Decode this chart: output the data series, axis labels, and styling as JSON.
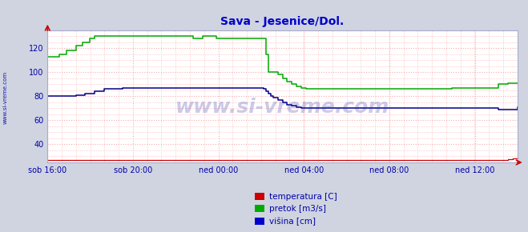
{
  "title": "Sava - Jesenice/Dol.",
  "title_color": "#0000cc",
  "title_fontsize": 10,
  "bg_color": "#d0d4e0",
  "plot_bg_color": "#ffffff",
  "grid_color": "#ffaaaa",
  "grid_ls": ":",
  "xlim": [
    0,
    1
  ],
  "ylim": [
    25,
    135
  ],
  "yticks": [
    40,
    60,
    80,
    100,
    120
  ],
  "xtick_labels": [
    "sob 16:00",
    "sob 20:00",
    "ned 00:00",
    "ned 04:00",
    "ned 08:00",
    "ned 12:00"
  ],
  "xtick_positions": [
    0.0,
    0.1818,
    0.3636,
    0.5455,
    0.7273,
    0.9091
  ],
  "legend_labels": [
    "temperatura [C]",
    "pretok [m3/s]",
    "višina [cm]"
  ],
  "legend_colors": [
    "#cc0000",
    "#00aa00",
    "#0000cc"
  ],
  "watermark": "www.si-vreme.com",
  "arrow_color": "#cc0000",
  "temp_color": "#cc0000",
  "pretok_color": "#00aa00",
  "visina_color": "#000088",
  "tick_color": "#0000aa",
  "tick_fontsize": 7,
  "temp_data": {
    "x": [
      0.0,
      0.02,
      0.04,
      0.06,
      0.08,
      0.1,
      0.12,
      0.14,
      0.16,
      0.18,
      0.2,
      0.22,
      0.24,
      0.26,
      0.28,
      0.3,
      0.305,
      0.31,
      0.315,
      0.32,
      0.34,
      0.36,
      0.38,
      0.4,
      0.42,
      0.44,
      0.46,
      0.48,
      0.49,
      0.5,
      0.52,
      0.54,
      0.56,
      0.58,
      0.6,
      0.62,
      0.64,
      0.66,
      0.68,
      0.7,
      0.72,
      0.74,
      0.76,
      0.78,
      0.8,
      0.82,
      0.84,
      0.86,
      0.88,
      0.9,
      0.92,
      0.94,
      0.96,
      0.97,
      0.98,
      0.99,
      1.0
    ],
    "y": [
      27,
      27,
      27,
      27,
      27,
      27,
      27,
      27,
      27,
      27,
      27,
      27,
      27,
      27,
      27,
      27,
      27,
      27,
      27,
      27,
      27,
      27,
      27,
      27,
      27,
      27,
      27,
      27,
      27,
      27,
      27,
      27,
      27,
      27,
      27,
      27,
      27,
      27,
      27,
      27,
      27,
      27,
      27,
      27,
      27,
      27,
      27,
      27,
      27,
      27,
      27,
      27,
      27,
      27,
      27.5,
      28,
      29
    ]
  },
  "pretok_data": {
    "x": [
      0.0,
      0.015,
      0.025,
      0.04,
      0.06,
      0.075,
      0.09,
      0.1,
      0.12,
      0.14,
      0.16,
      0.18,
      0.2,
      0.22,
      0.24,
      0.26,
      0.28,
      0.3,
      0.31,
      0.32,
      0.33,
      0.34,
      0.35,
      0.36,
      0.37,
      0.38,
      0.39,
      0.4,
      0.41,
      0.42,
      0.43,
      0.44,
      0.45,
      0.46,
      0.465,
      0.47,
      0.48,
      0.49,
      0.5,
      0.51,
      0.52,
      0.53,
      0.54,
      0.55,
      0.56,
      0.58,
      0.6,
      0.62,
      0.64,
      0.66,
      0.68,
      0.7,
      0.72,
      0.74,
      0.76,
      0.78,
      0.8,
      0.82,
      0.84,
      0.86,
      0.88,
      0.9,
      0.92,
      0.94,
      0.96,
      0.98,
      1.0
    ],
    "y": [
      113,
      113,
      115,
      118,
      122,
      125,
      128,
      130,
      130,
      130,
      130,
      130,
      130,
      130,
      130,
      130,
      130,
      130,
      128,
      128,
      130,
      130,
      130,
      128,
      128,
      128,
      128,
      128,
      128,
      128,
      128,
      128,
      128,
      128,
      115,
      100,
      100,
      98,
      95,
      92,
      90,
      88,
      87,
      86,
      86,
      86,
      86,
      86,
      86,
      86,
      86,
      86,
      86,
      86,
      86,
      86,
      86,
      86,
      86,
      87,
      87,
      87,
      87,
      87,
      90,
      91,
      91
    ]
  },
  "visina_data": {
    "x": [
      0.0,
      0.02,
      0.04,
      0.06,
      0.08,
      0.1,
      0.12,
      0.14,
      0.16,
      0.18,
      0.2,
      0.22,
      0.24,
      0.26,
      0.28,
      0.3,
      0.32,
      0.34,
      0.36,
      0.38,
      0.4,
      0.42,
      0.44,
      0.455,
      0.46,
      0.465,
      0.47,
      0.475,
      0.48,
      0.49,
      0.5,
      0.51,
      0.52,
      0.53,
      0.54,
      0.55,
      0.56,
      0.58,
      0.6,
      0.62,
      0.64,
      0.66,
      0.68,
      0.7,
      0.72,
      0.74,
      0.76,
      0.78,
      0.8,
      0.82,
      0.84,
      0.86,
      0.88,
      0.9,
      0.92,
      0.94,
      0.96,
      0.98,
      1.0
    ],
    "y": [
      80,
      80,
      80,
      81,
      82,
      84,
      86,
      86,
      87,
      87,
      87,
      87,
      87,
      87,
      87,
      87,
      87,
      87,
      87,
      87,
      87,
      87,
      87,
      87,
      86,
      84,
      82,
      80,
      79,
      77,
      75,
      73,
      72,
      71,
      70,
      70,
      70,
      70,
      70,
      70,
      70,
      70,
      70,
      70,
      70,
      70,
      70,
      70,
      70,
      70,
      70,
      70,
      70,
      70,
      70,
      70,
      69,
      69,
      71
    ]
  }
}
